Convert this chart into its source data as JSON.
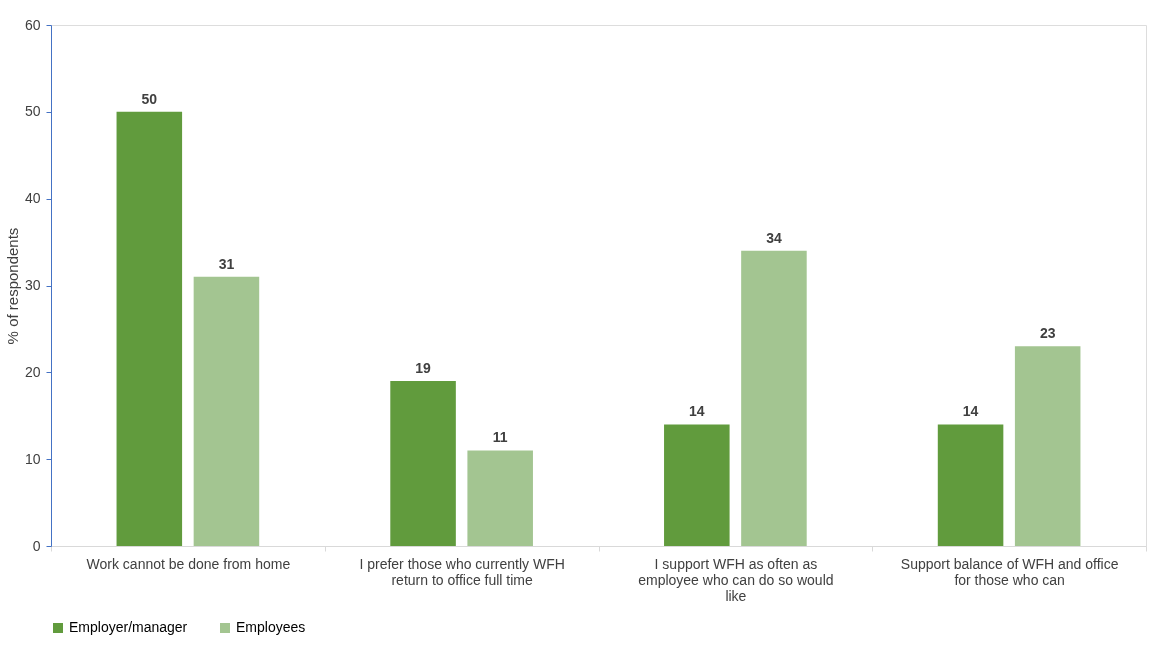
{
  "chart_data": {
    "type": "bar",
    "ylabel": "% of respondents",
    "categories": [
      "Work cannot be done from home",
      "I prefer those who currently WFH\nreturn to office full time",
      "I support WFH as often as\nemployee who can do so would\nlike",
      "Support balance of WFH and office\nfor those who can"
    ],
    "series": [
      {
        "name": "Employer/manager",
        "color": "#619b3d",
        "values": [
          50,
          19,
          14,
          14
        ]
      },
      {
        "name": "Employees",
        "color": "#a3c591",
        "values": [
          31,
          11,
          34,
          23
        ]
      }
    ],
    "ylim": [
      0,
      60
    ],
    "yticks": [
      0,
      10,
      20,
      30,
      40,
      50,
      60
    ],
    "grid": false,
    "legend": "bottom",
    "data_labels": true
  }
}
